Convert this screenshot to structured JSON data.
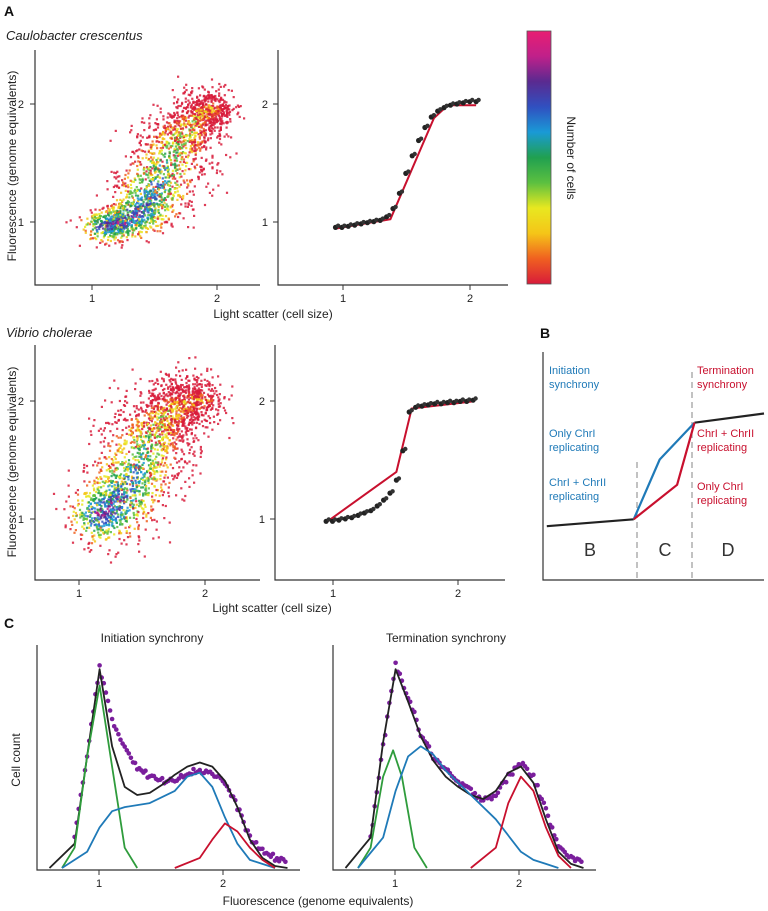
{
  "panel_labels": {
    "a": "A",
    "b": "B",
    "c": "C"
  },
  "panel_a": {
    "caulobacter": {
      "species": "Caulobacter crescentus",
      "ylabel": "Fluorescence (genome equivalents)",
      "xlabel": "Light scatter (cell size)",
      "x_ticks": [
        "1",
        "2"
      ],
      "y_ticks": [
        "1",
        "2"
      ]
    },
    "vibrio": {
      "species": "Vibrio cholerae",
      "ylabel": "Fluorescence (genome equivalents)",
      "xlabel": "Light scatter (cell size)",
      "x_ticks": [
        "1",
        "2"
      ],
      "y_ticks": [
        "1",
        "2"
      ]
    },
    "colorbar": {
      "label": "Number of cells",
      "colors": [
        "#d81b3a",
        "#f06020",
        "#f5c518",
        "#e8e820",
        "#5cc040",
        "#20a050",
        "#1a9ad6",
        "#3050c0",
        "#5a2a90",
        "#c0208a",
        "#e81e72"
      ]
    }
  },
  "panel_b": {
    "phases": [
      "B",
      "C",
      "D"
    ],
    "notes": {
      "init_title": "Initiation synchrony",
      "term_title": "Termination synchrony",
      "only_chr1_left": "Only ChrI replicating",
      "chr1_chr2_left": "ChrI + ChrII replicating",
      "chr1_chr2_right": "ChrI + ChrII replicating",
      "only_chr1_right": "Only ChrI replicating"
    },
    "colors": {
      "initiation": "#1f7ab8",
      "termination": "#c8102e"
    }
  },
  "panel_c": {
    "initiation": {
      "title": "Initiation synchrony",
      "x_ticks": [
        "1",
        "2"
      ]
    },
    "termination": {
      "title": "Termination synchrony",
      "x_ticks": [
        "1",
        "2"
      ]
    },
    "ylabel": "Cell count",
    "xlabel": "Fluorescence (genome equivalents)"
  },
  "chart_data": [
    {
      "type": "scatter",
      "panel": "A",
      "species": "Caulobacter crescentus",
      "encoding": "density",
      "xlim": [
        0.5,
        2.3
      ],
      "ylim": [
        0.5,
        2.5
      ],
      "density_path": {
        "x": [
          1.0,
          1.2,
          1.4,
          1.5,
          1.65,
          1.8,
          1.95
        ],
        "y": [
          1.0,
          1.04,
          1.2,
          1.45,
          1.75,
          1.95,
          2.03
        ],
        "spread_y": [
          0.07,
          0.08,
          0.12,
          0.16,
          0.15,
          0.1,
          0.08
        ]
      },
      "peak_density": [
        1.2,
        1.05
      ],
      "xlabel": "Light scatter (cell size)",
      "ylabel": "Fluorescence (genome equivalents)"
    },
    {
      "type": "line",
      "panel": "A",
      "species": "Caulobacter crescentus",
      "xlim": [
        0.5,
        2.3
      ],
      "ylim": [
        0.5,
        2.5
      ],
      "data_points": {
        "x": [
          0.95,
          1.0,
          1.05,
          1.1,
          1.15,
          1.2,
          1.25,
          1.3,
          1.35,
          1.4,
          1.45,
          1.5,
          1.55,
          1.6,
          1.65,
          1.7,
          1.75,
          1.8,
          1.85,
          1.9,
          1.95,
          2.0,
          2.05
        ],
        "y": [
          0.99,
          0.99,
          1.0,
          1.01,
          1.02,
          1.03,
          1.04,
          1.05,
          1.08,
          1.15,
          1.28,
          1.45,
          1.6,
          1.73,
          1.84,
          1.93,
          1.98,
          2.01,
          2.03,
          2.04,
          2.05,
          2.06,
          2.06
        ]
      },
      "fit_line": {
        "x": [
          0.95,
          1.38,
          1.72,
          1.83,
          2.05
        ],
        "y": [
          0.98,
          1.06,
          1.92,
          2.03,
          2.03
        ]
      },
      "x_ticks": [
        1,
        2
      ],
      "y_ticks": [
        1,
        2
      ]
    },
    {
      "type": "scatter",
      "panel": "A",
      "species": "Vibrio cholerae",
      "encoding": "density",
      "xlim": [
        0.5,
        2.6
      ],
      "ylim": [
        0.5,
        2.5
      ],
      "density_path": {
        "x": [
          1.05,
          1.2,
          1.35,
          1.5,
          1.6,
          1.75,
          1.9,
          2.1
        ],
        "y": [
          1.05,
          1.12,
          1.3,
          1.55,
          1.8,
          1.95,
          2.02,
          2.05
        ],
        "spread_y": [
          0.12,
          0.15,
          0.18,
          0.2,
          0.18,
          0.14,
          0.12,
          0.1
        ]
      },
      "peak_density": [
        1.15,
        1.08
      ],
      "xlabel": "Light scatter (cell size)",
      "ylabel": "Fluorescence (genome equivalents)"
    },
    {
      "type": "line",
      "panel": "A",
      "species": "Vibrio cholerae",
      "xlim": [
        0.5,
        2.3
      ],
      "ylim": [
        0.5,
        2.5
      ],
      "data_points": {
        "x": [
          0.9,
          0.95,
          1.0,
          1.05,
          1.1,
          1.15,
          1.2,
          1.25,
          1.3,
          1.35,
          1.4,
          1.45,
          1.5,
          1.55,
          1.6,
          1.65,
          1.7,
          1.75,
          1.8,
          1.85,
          1.9,
          1.95,
          2.0,
          2.05
        ],
        "y": [
          1.0,
          1.0,
          1.01,
          1.02,
          1.03,
          1.05,
          1.07,
          1.09,
          1.13,
          1.18,
          1.24,
          1.35,
          1.6,
          1.93,
          1.97,
          1.98,
          1.99,
          2.0,
          2.0,
          2.01,
          2.01,
          2.02,
          2.02,
          2.03
        ]
      },
      "fit_line": {
        "x": [
          0.9,
          1.45,
          1.57,
          2.05
        ],
        "y": [
          0.99,
          1.42,
          1.96,
          2.02
        ]
      },
      "x_ticks": [
        1,
        2
      ],
      "y_ticks": [
        1,
        2
      ]
    },
    {
      "type": "line",
      "panel": "B",
      "series": [
        {
          "name": "",
          "color": "#222222",
          "x": [
            0,
            2.0
          ],
          "y": [
            0.3,
            0.45
          ]
        },
        {
          "name": "",
          "color": "#222222",
          "x": [
            3.4,
            5.0
          ],
          "y": [
            2.55,
            2.75
          ]
        },
        {
          "name": "",
          "color": "#1f7ab8",
          "x": [
            2.0,
            2.6,
            3.4
          ],
          "y": [
            0.45,
            1.75,
            2.55
          ]
        },
        {
          "name": "",
          "color": "#c8102e",
          "x": [
            2.0,
            3.0,
            3.4
          ],
          "y": [
            0.45,
            1.2,
            2.55
          ]
        }
      ],
      "dividers_x": [
        2.0,
        3.4
      ],
      "phase_labels": [
        "B",
        "C",
        "D"
      ]
    },
    {
      "type": "line",
      "panel": "C",
      "title": "Initiation synchrony",
      "xlabel": "Fluorescence (genome equivalents)",
      "ylabel": "Cell count",
      "xlim": [
        0.5,
        2.6
      ],
      "ylim": [
        0,
        1.05
      ],
      "x_ticks": [
        1,
        2
      ],
      "series": [
        {
          "name": "",
          "color": "#7a1e9c",
          "x": [
            0.8,
            0.9,
            1.0,
            1.1,
            1.2,
            1.3,
            1.4,
            1.5,
            1.6,
            1.7,
            1.8,
            1.9,
            2.0,
            2.1,
            2.2,
            2.3,
            2.4,
            2.5
          ],
          "y": [
            0.15,
            0.55,
            1.0,
            0.72,
            0.6,
            0.5,
            0.45,
            0.43,
            0.44,
            0.47,
            0.48,
            0.47,
            0.42,
            0.3,
            0.15,
            0.08,
            0.05,
            0.03
          ]
        },
        {
          "name": "",
          "color": "#222222",
          "x": [
            0.6,
            0.8,
            0.9,
            1.0,
            1.1,
            1.2,
            1.3,
            1.4,
            1.5,
            1.6,
            1.7,
            1.8,
            1.9,
            2.0,
            2.1,
            2.2,
            2.3,
            2.4,
            2.5
          ],
          "y": [
            0.0,
            0.12,
            0.55,
            0.98,
            0.6,
            0.4,
            0.36,
            0.37,
            0.41,
            0.46,
            0.5,
            0.52,
            0.5,
            0.43,
            0.3,
            0.14,
            0.05,
            0.01,
            0.0
          ]
        },
        {
          "name": "",
          "color": "#2f9c3c",
          "x": [
            0.7,
            0.8,
            0.9,
            1.0,
            1.1,
            1.2,
            1.3
          ],
          "y": [
            0.0,
            0.1,
            0.55,
            0.9,
            0.5,
            0.1,
            0.0
          ]
        },
        {
          "name": "",
          "color": "#1f7ab8",
          "x": [
            0.7,
            0.9,
            1.0,
            1.1,
            1.2,
            1.4,
            1.6,
            1.7,
            1.8,
            1.9,
            2.0,
            2.1,
            2.2,
            2.4
          ],
          "y": [
            0.0,
            0.08,
            0.2,
            0.28,
            0.3,
            0.32,
            0.38,
            0.45,
            0.47,
            0.4,
            0.25,
            0.12,
            0.04,
            0.0
          ]
        },
        {
          "name": "",
          "color": "#c8102e",
          "x": [
            1.6,
            1.8,
            1.9,
            2.0,
            2.1,
            2.2,
            2.3,
            2.4
          ],
          "y": [
            0.0,
            0.05,
            0.14,
            0.22,
            0.18,
            0.1,
            0.04,
            0.0
          ]
        }
      ]
    },
    {
      "type": "line",
      "panel": "C",
      "title": "Termination synchrony",
      "xlabel": "Fluorescence (genome equivalents)",
      "ylabel": "Cell count",
      "xlim": [
        0.5,
        2.6
      ],
      "ylim": [
        0,
        1.05
      ],
      "x_ticks": [
        1,
        2
      ],
      "series": [
        {
          "name": "",
          "color": "#7a1e9c",
          "x": [
            0.8,
            0.9,
            1.0,
            1.1,
            1.2,
            1.3,
            1.4,
            1.5,
            1.6,
            1.7,
            1.8,
            1.9,
            2.0,
            2.1,
            2.2,
            2.3,
            2.4,
            2.5
          ],
          "y": [
            0.15,
            0.6,
            1.0,
            0.85,
            0.66,
            0.55,
            0.48,
            0.42,
            0.38,
            0.34,
            0.36,
            0.45,
            0.52,
            0.45,
            0.28,
            0.12,
            0.05,
            0.02
          ]
        },
        {
          "name": "",
          "color": "#222222",
          "x": [
            0.6,
            0.8,
            0.9,
            1.0,
            1.1,
            1.2,
            1.3,
            1.4,
            1.5,
            1.6,
            1.7,
            1.8,
            1.9,
            2.0,
            2.1,
            2.2,
            2.3,
            2.4,
            2.5
          ],
          "y": [
            0.0,
            0.15,
            0.62,
            0.98,
            0.82,
            0.65,
            0.53,
            0.45,
            0.4,
            0.36,
            0.34,
            0.38,
            0.47,
            0.5,
            0.42,
            0.24,
            0.08,
            0.02,
            0.0
          ]
        },
        {
          "name": "",
          "color": "#2f9c3c",
          "x": [
            0.7,
            0.8,
            0.9,
            0.98,
            1.05,
            1.15,
            1.25
          ],
          "y": [
            0.0,
            0.1,
            0.45,
            0.58,
            0.45,
            0.1,
            0.0
          ]
        },
        {
          "name": "",
          "color": "#1f7ab8",
          "x": [
            0.7,
            0.9,
            1.0,
            1.1,
            1.2,
            1.3,
            1.4,
            1.6,
            1.8,
            1.9,
            2.0,
            2.1,
            2.2,
            2.3
          ],
          "y": [
            0.0,
            0.15,
            0.38,
            0.55,
            0.6,
            0.56,
            0.48,
            0.36,
            0.24,
            0.16,
            0.08,
            0.04,
            0.02,
            0.0
          ]
        },
        {
          "name": "",
          "color": "#c8102e",
          "x": [
            1.6,
            1.8,
            1.9,
            2.0,
            2.1,
            2.2,
            2.3,
            2.4
          ],
          "y": [
            0.0,
            0.1,
            0.32,
            0.45,
            0.38,
            0.2,
            0.06,
            0.0
          ]
        }
      ]
    }
  ]
}
